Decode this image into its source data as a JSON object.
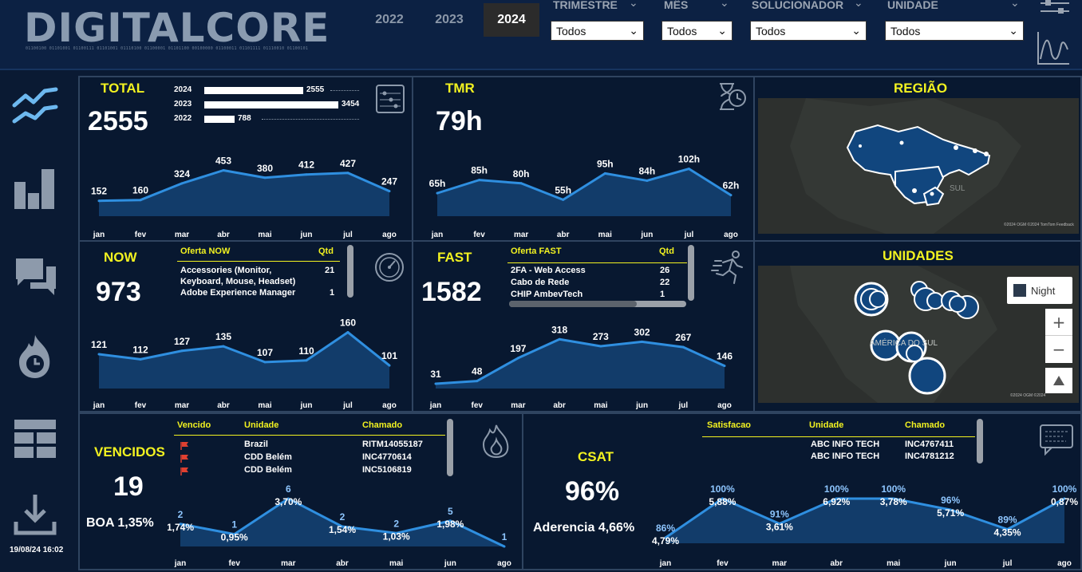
{
  "header": {
    "logo": "DIGITALCORE",
    "logo_binary": "01100100 01101001 01100111 01101001 01110100 01100001 01101100 00100000 01100011 01101111 01110010 01100101",
    "years": [
      "2022",
      "2023",
      "2024"
    ],
    "selected_year": "2024",
    "filters": [
      {
        "label": "TRIMESTRE",
        "value": "Todos"
      },
      {
        "label": "MÊS",
        "value": "Todos"
      },
      {
        "label": "SOLUCIONADOR",
        "value": "Todos"
      },
      {
        "label": "UNIDADE",
        "value": "Todos"
      }
    ]
  },
  "sidebar": {
    "datetime": "19/08/24 16:02",
    "icons": [
      "line-chart-icon",
      "bar-chart-icon",
      "chat-icon",
      "fire-clock-icon",
      "grid-icon",
      "download-icon"
    ]
  },
  "months": [
    "jan",
    "fev",
    "mar",
    "abr",
    "mai",
    "jun",
    "jul",
    "ago"
  ],
  "total": {
    "title": "TOTAL",
    "value": "2555",
    "years": [
      {
        "year": "2024",
        "label": "2555",
        "value": 2555
      },
      {
        "year": "2023",
        "label": "3454",
        "value": 3454
      },
      {
        "year": "2022",
        "label": "788",
        "value": 788
      }
    ],
    "labels": [
      "152",
      "160",
      "324",
      "453",
      "380",
      "412",
      "427",
      "247"
    ]
  },
  "tmr": {
    "title": "TMR",
    "value": "79h",
    "labels": [
      "65h",
      "85h",
      "80h",
      "55h",
      "95h",
      "84h",
      "102h",
      "62h"
    ]
  },
  "regiao": {
    "title": "REGIÃO",
    "map_label": "SUL",
    "credits": "©2024 OGM ©2024 TomTom Feedback"
  },
  "now": {
    "title": "NOW",
    "value": "973",
    "col1": "Oferta NOW",
    "col2": "Qtd",
    "rows": [
      {
        "name": "Accessories (Monitor,",
        "name2": "Keyboard, Mouse, Headset)",
        "qtd": "21"
      },
      {
        "name": "Adobe Experience Manager",
        "name2": "",
        "qtd": "1"
      }
    ],
    "labels": [
      "121",
      "112",
      "127",
      "135",
      "107",
      "110",
      "160",
      "101"
    ]
  },
  "fast": {
    "title": "FAST",
    "value": "1582",
    "col1": "Oferta FAST",
    "col2": "Qtd",
    "rows": [
      {
        "name": "2FA - Web Access",
        "qtd": "26"
      },
      {
        "name": "Cabo de Rede",
        "qtd": "22"
      },
      {
        "name": "CHIP AmbevTech",
        "qtd": "1"
      }
    ],
    "labels": [
      "31",
      "48",
      "197",
      "318",
      "273",
      "302",
      "267",
      "146"
    ]
  },
  "unidades": {
    "title": "UNIDADES",
    "map_label": "AMÉRICA DO SUL",
    "night_label": "Night",
    "zoom_in": "+",
    "zoom_out": "−",
    "credits": "©2024 OGM ©2024"
  },
  "vencidos": {
    "title": "VENCIDOS",
    "value": "19",
    "boa": "BOA 1,35%",
    "cols": [
      "Vencido",
      "Unidade",
      "Chamado"
    ],
    "rows": [
      {
        "unidade": "Brazil",
        "chamado": "RITM14055187"
      },
      {
        "unidade": "CDD Belém",
        "chamado": "INC4770614"
      },
      {
        "unidade": "CDD Belém",
        "chamado": "INC5106819"
      }
    ],
    "counts": [
      "2",
      "1",
      "6",
      "2",
      "2",
      "5",
      "1"
    ],
    "pcts": [
      "1,74%",
      "0,95%",
      "3,70%",
      "1,54%",
      "1,03%",
      "1,98%",
      ""
    ],
    "months": [
      "jan",
      "fev",
      "mar",
      "abr",
      "mai",
      "jun",
      "ago"
    ]
  },
  "csat": {
    "title": "CSAT",
    "value": "96%",
    "aderencia": "Aderencia 4,66%",
    "cols": [
      "Satisfacao",
      "Unidade",
      "Chamado"
    ],
    "rows": [
      {
        "unidade": "ABC INFO TECH",
        "chamado": "INC4767411"
      },
      {
        "unidade": "ABC INFO TECH",
        "chamado": "INC4781212"
      }
    ],
    "counts": [
      "86%",
      "100%",
      "91%",
      "100%",
      "100%",
      "96%",
      "89%",
      "100%"
    ],
    "pcts": [
      "4,79%",
      "5,88%",
      "3,61%",
      "6,92%",
      "3,78%",
      "5,71%",
      "4,35%",
      "0,87%"
    ]
  },
  "chart_data": [
    {
      "type": "area",
      "title": "TOTAL",
      "categories": [
        "jan",
        "fev",
        "mar",
        "abr",
        "mai",
        "jun",
        "jul",
        "ago"
      ],
      "values": [
        152,
        160,
        324,
        453,
        380,
        412,
        427,
        247
      ]
    },
    {
      "type": "bar",
      "title": "TOTAL",
      "categories": [
        "2024",
        "2023",
        "2022"
      ],
      "values": [
        2555,
        3454,
        788
      ]
    },
    {
      "type": "area",
      "title": "TMR",
      "categories": [
        "jan",
        "fev",
        "mar",
        "abr",
        "mai",
        "jun",
        "jul",
        "ago"
      ],
      "values": [
        65,
        85,
        80,
        55,
        95,
        84,
        102,
        62
      ]
    },
    {
      "type": "area",
      "title": "NOW",
      "categories": [
        "jan",
        "fev",
        "mar",
        "abr",
        "mai",
        "jun",
        "jul",
        "ago"
      ],
      "values": [
        121,
        112,
        127,
        135,
        107,
        110,
        160,
        101
      ]
    },
    {
      "type": "area",
      "title": "FAST",
      "categories": [
        "jan",
        "fev",
        "mar",
        "abr",
        "mai",
        "jun",
        "jul",
        "ago"
      ],
      "values": [
        31,
        48,
        197,
        318,
        273,
        302,
        267,
        146
      ]
    },
    {
      "type": "area",
      "title": "VENCIDOS",
      "categories": [
        "jan",
        "fev",
        "mar",
        "abr",
        "mai",
        "jun",
        "ago"
      ],
      "values": [
        1.74,
        0.95,
        3.7,
        1.54,
        1.03,
        1.98,
        0
      ]
    },
    {
      "type": "area",
      "title": "CSAT",
      "categories": [
        "jan",
        "fev",
        "mar",
        "abr",
        "mai",
        "jun",
        "jul",
        "ago"
      ],
      "values": [
        86,
        100,
        91,
        100,
        100,
        96,
        89,
        100
      ]
    }
  ]
}
